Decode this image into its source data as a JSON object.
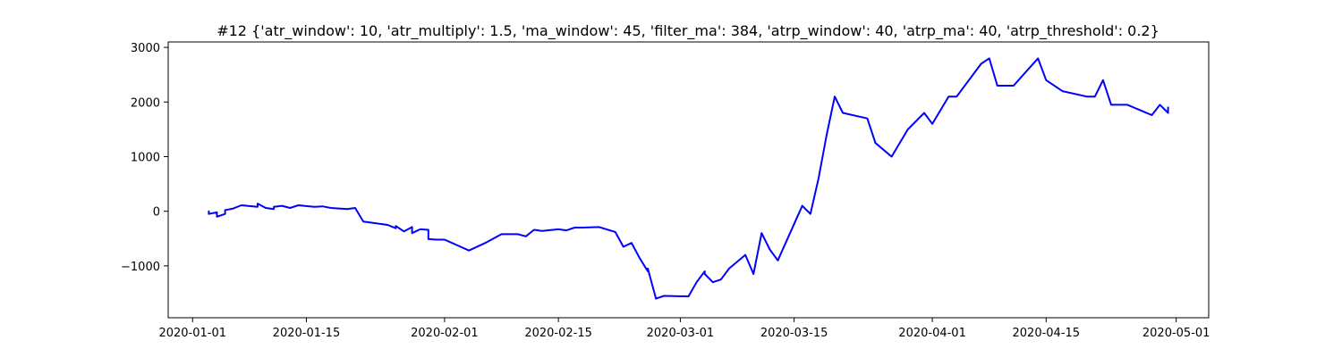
{
  "chart_data": {
    "type": "line",
    "title": "#12 {'atr_window': 10, 'atr_multiply': 1.5, 'ma_window': 45, 'filter_ma': 384, 'atrp_window': 40, 'atrp_ma': 40, 'atrp_threshold': 0.2}",
    "xlabel": "",
    "ylabel": "",
    "x_axis_type": "date",
    "xlim": [
      "2019-12-29",
      "2020-05-05"
    ],
    "ylim": [
      -1950,
      3100
    ],
    "xticks": [
      "2020-01-01",
      "2020-01-15",
      "2020-02-01",
      "2020-02-15",
      "2020-03-01",
      "2020-03-15",
      "2020-04-01",
      "2020-04-15",
      "2020-05-01"
    ],
    "yticks": [
      -1000,
      0,
      1000,
      2000,
      3000
    ],
    "ytick_labels": [
      "−1000",
      "0",
      "1000",
      "2000",
      "3000"
    ],
    "grid": false,
    "legend": "none",
    "colors": {
      "line": "#0000ff"
    },
    "series": [
      {
        "x": [
          "2020-01-03",
          "2020-01-03",
          "2020-01-04",
          "2020-01-04",
          "2020-01-05",
          "2020-01-05",
          "2020-01-06",
          "2020-01-07",
          "2020-01-09",
          "2020-01-09",
          "2020-01-10",
          "2020-01-11",
          "2020-01-11",
          "2020-01-12",
          "2020-01-13",
          "2020-01-14",
          "2020-01-16",
          "2020-01-17",
          "2020-01-18",
          "2020-01-19",
          "2020-01-20",
          "2020-01-21",
          "2020-01-22",
          "2020-01-25",
          "2020-01-26",
          "2020-01-26",
          "2020-01-27",
          "2020-01-28",
          "2020-01-28",
          "2020-01-29",
          "2020-01-30",
          "2020-01-30",
          "2020-01-31",
          "2020-02-01",
          "2020-02-04",
          "2020-02-06",
          "2020-02-08",
          "2020-02-10",
          "2020-02-11",
          "2020-02-12",
          "2020-02-13",
          "2020-02-15",
          "2020-02-16",
          "2020-02-17",
          "2020-02-18",
          "2020-02-20",
          "2020-02-22",
          "2020-02-23",
          "2020-02-24",
          "2020-02-25",
          "2020-02-26",
          "2020-02-26",
          "2020-02-27",
          "2020-02-28",
          "2020-03-02",
          "2020-03-03",
          "2020-03-04",
          "2020-03-04",
          "2020-03-05",
          "2020-03-06",
          "2020-03-07",
          "2020-03-09",
          "2020-03-10",
          "2020-03-11",
          "2020-03-12",
          "2020-03-13",
          "2020-03-16",
          "2020-03-17",
          "2020-03-18",
          "2020-03-19",
          "2020-03-20",
          "2020-03-21",
          "2020-03-24",
          "2020-03-25",
          "2020-03-27",
          "2020-03-29",
          "2020-03-31",
          "2020-04-01",
          "2020-04-03",
          "2020-04-04",
          "2020-04-07",
          "2020-04-08",
          "2020-04-09",
          "2020-04-11",
          "2020-04-14",
          "2020-04-15",
          "2020-04-17",
          "2020-04-20",
          "2020-04-21",
          "2020-04-22",
          "2020-04-23",
          "2020-04-25",
          "2020-04-28",
          "2020-04-29",
          "2020-04-30",
          "2020-04-30"
        ],
        "y": [
          0,
          -50,
          -20,
          -100,
          -50,
          20,
          50,
          110,
          80,
          140,
          60,
          40,
          80,
          100,
          60,
          110,
          80,
          90,
          60,
          50,
          40,
          60,
          -190,
          -250,
          -310,
          -270,
          -370,
          -290,
          -400,
          -330,
          -340,
          -510,
          -520,
          -520,
          -720,
          -580,
          -420,
          -420,
          -460,
          -340,
          -360,
          -330,
          -350,
          -300,
          -300,
          -290,
          -380,
          -650,
          -580,
          -860,
          -1100,
          -1050,
          -1600,
          -1550,
          -1560,
          -1300,
          -1100,
          -1150,
          -1300,
          -1250,
          -1050,
          -800,
          -1150,
          -400,
          -700,
          -900,
          100,
          -50,
          600,
          1400,
          2100,
          1800,
          1700,
          1250,
          1000,
          1500,
          1800,
          1600,
          2100,
          2100,
          2700,
          2800,
          2300,
          2300,
          2800,
          2400,
          2200,
          2100,
          2100,
          2400,
          1950,
          1950,
          1760,
          1950,
          1800,
          1900
        ]
      }
    ]
  }
}
